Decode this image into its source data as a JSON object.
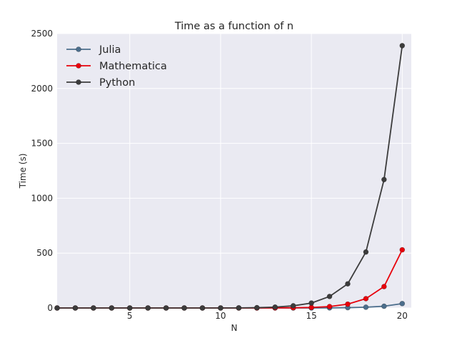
{
  "chart_data": {
    "type": "line",
    "title": "Time as a function of n",
    "xlabel": "N",
    "ylabel": "Time (s)",
    "xlim": [
      1,
      20.5
    ],
    "ylim": [
      0,
      2500
    ],
    "x_ticks": [
      5,
      10,
      15,
      20
    ],
    "y_ticks": [
      0,
      500,
      1000,
      1500,
      2000,
      2500
    ],
    "grid": true,
    "legend_position": "upper-left",
    "x": [
      1,
      2,
      3,
      4,
      5,
      6,
      7,
      8,
      9,
      10,
      11,
      12,
      13,
      14,
      15,
      16,
      17,
      18,
      19,
      20
    ],
    "series": [
      {
        "name": "Julia",
        "color": "#4c6e8c",
        "values": [
          0,
          0,
          0,
          0,
          0,
          0,
          0,
          0,
          0,
          0,
          0,
          0,
          0,
          0,
          0,
          1,
          3,
          7,
          16,
          40
        ]
      },
      {
        "name": "Mathematica",
        "color": "#e8000b",
        "values": [
          0,
          0,
          0,
          0,
          0,
          0,
          0,
          0,
          0,
          0,
          0,
          0,
          1,
          2,
          5,
          13,
          35,
          85,
          195,
          530
        ]
      },
      {
        "name": "Python",
        "color": "#3c3c3c",
        "values": [
          0,
          0,
          0,
          0,
          0,
          0,
          0,
          0,
          0,
          0,
          1,
          3,
          8,
          20,
          45,
          105,
          220,
          510,
          1170,
          2390
        ]
      }
    ]
  }
}
